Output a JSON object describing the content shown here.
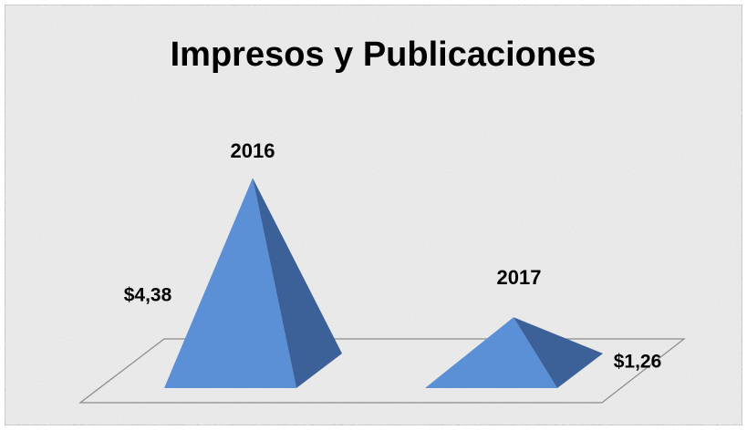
{
  "chart_data": {
    "type": "pyramid",
    "title": "Impresos y Publicaciones",
    "categories": [
      "2016",
      "2017"
    ],
    "values": [
      4.38,
      1.26
    ],
    "value_labels": [
      "$4,38",
      "$1,26"
    ],
    "color": "#5b8fd6"
  }
}
